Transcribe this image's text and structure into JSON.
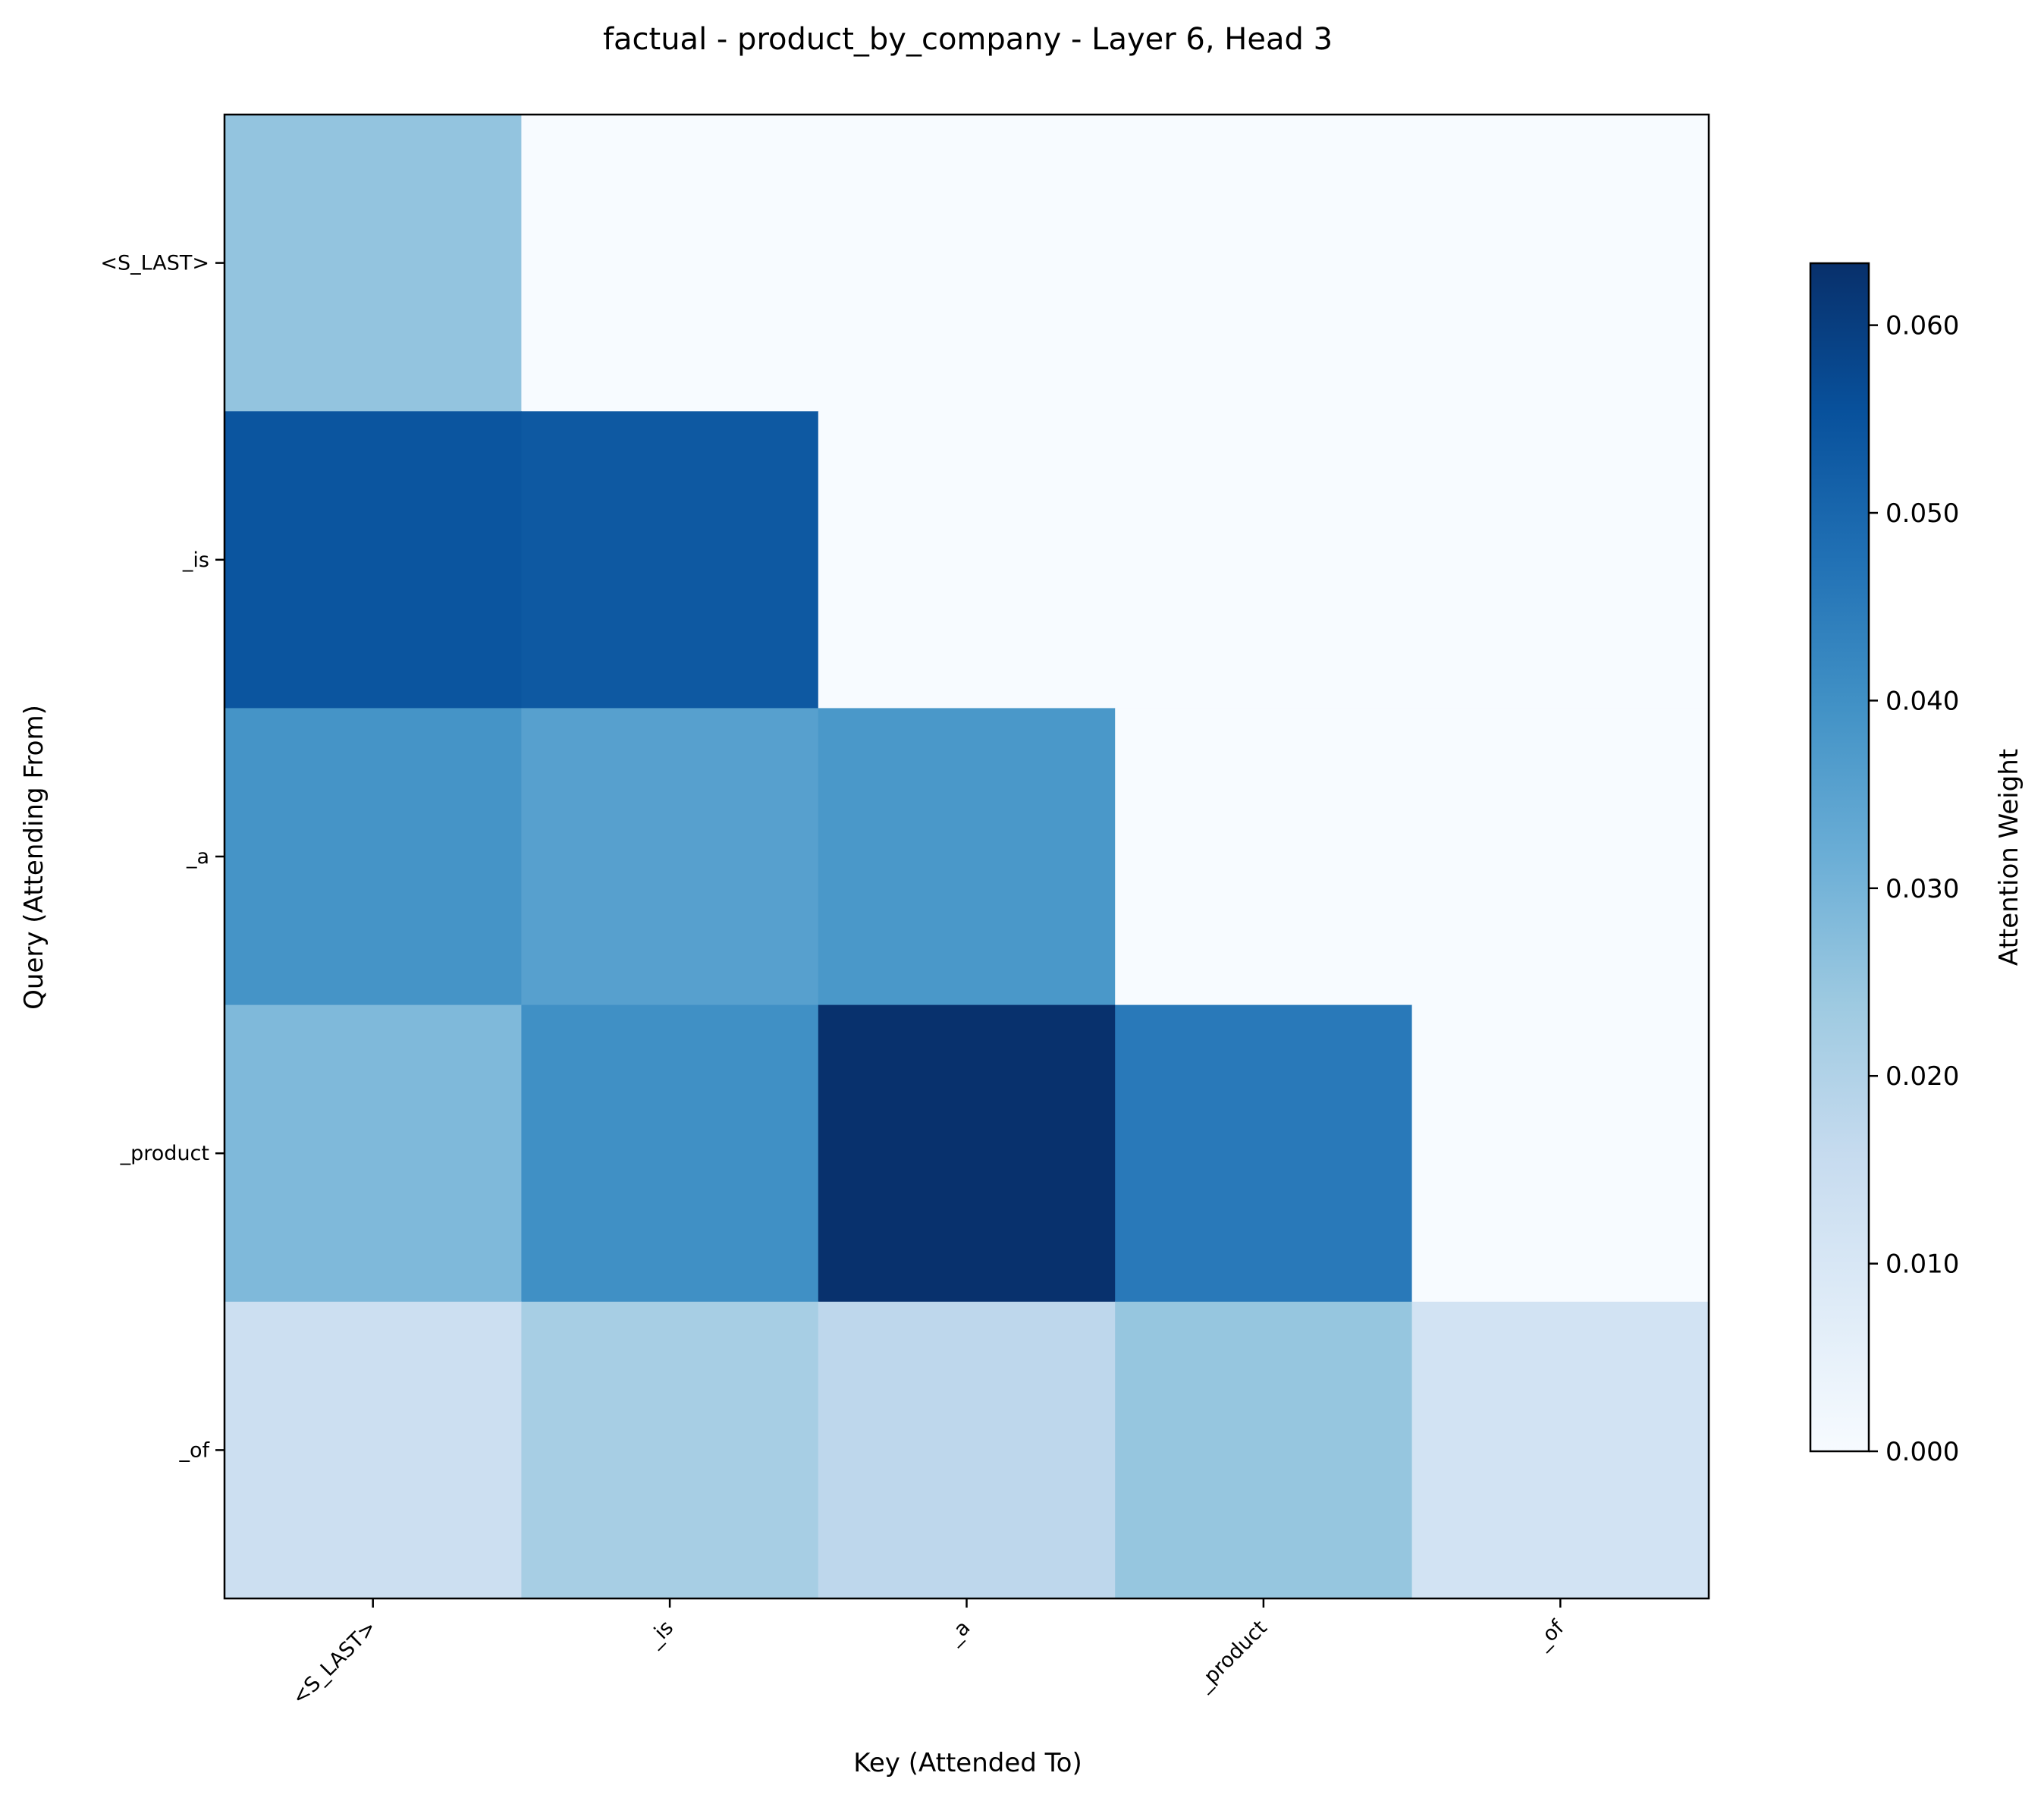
{
  "chart_data": {
    "type": "heatmap",
    "title": "factual - product_by_company - Layer 6, Head 3",
    "xlabel": "Key (Attended To)",
    "ylabel": "Query (Attending From)",
    "x_categories": [
      "<S_LAST>",
      "_is",
      "_a",
      "_product",
      "_of"
    ],
    "y_categories": [
      "<S_LAST>",
      "_is",
      "_a",
      "_product",
      "_of"
    ],
    "values": [
      [
        0.0255,
        0.0,
        0.0,
        0.0,
        0.0
      ],
      [
        0.0545,
        0.0535,
        0.0,
        0.0,
        0.0
      ],
      [
        0.039,
        0.0355,
        0.038,
        0.0,
        0.0
      ],
      [
        0.0285,
        0.04,
        0.063,
        0.0455,
        0.0
      ],
      [
        0.014,
        0.022,
        0.0175,
        0.025,
        0.012
      ]
    ],
    "colormap": "Blues",
    "colorbar": {
      "label": "Attention Weight",
      "min": 0.0,
      "max": 0.0633,
      "ticks": [
        0.0,
        0.01,
        0.02,
        0.03,
        0.04,
        0.05,
        0.06
      ],
      "tick_labels": [
        "0.000",
        "0.010",
        "0.020",
        "0.030",
        "0.040",
        "0.050",
        "0.060"
      ]
    },
    "grid": false
  }
}
